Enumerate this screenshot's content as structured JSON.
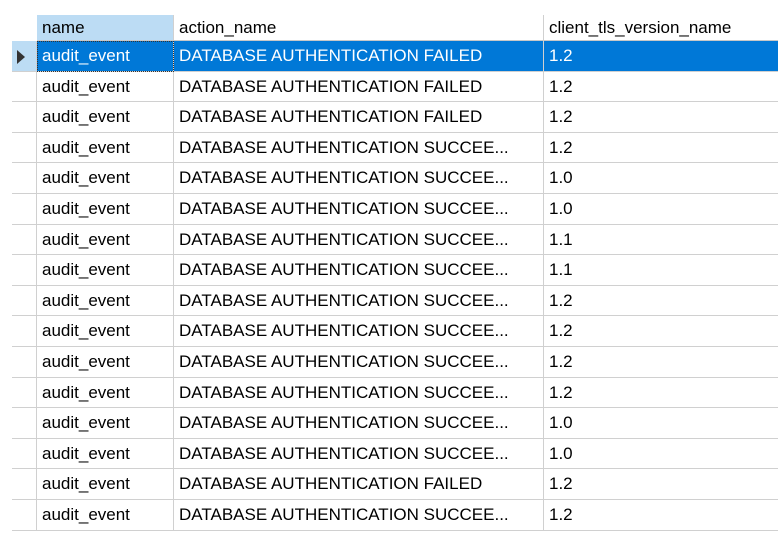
{
  "columns": [
    "name",
    "action_name",
    "client_tls_version_name"
  ],
  "selected_row": 0,
  "rows": [
    [
      "audit_event",
      "DATABASE AUTHENTICATION FAILED",
      "1.2"
    ],
    [
      "audit_event",
      "DATABASE AUTHENTICATION FAILED",
      "1.2"
    ],
    [
      "audit_event",
      "DATABASE AUTHENTICATION FAILED",
      "1.2"
    ],
    [
      "audit_event",
      "DATABASE AUTHENTICATION SUCCEE...",
      "1.2"
    ],
    [
      "audit_event",
      "DATABASE AUTHENTICATION SUCCEE...",
      "1.0"
    ],
    [
      "audit_event",
      "DATABASE AUTHENTICATION SUCCEE...",
      "1.0"
    ],
    [
      "audit_event",
      "DATABASE AUTHENTICATION SUCCEE...",
      "1.1"
    ],
    [
      "audit_event",
      "DATABASE AUTHENTICATION SUCCEE...",
      "1.1"
    ],
    [
      "audit_event",
      "DATABASE AUTHENTICATION SUCCEE...",
      "1.2"
    ],
    [
      "audit_event",
      "DATABASE AUTHENTICATION SUCCEE...",
      "1.2"
    ],
    [
      "audit_event",
      "DATABASE AUTHENTICATION SUCCEE...",
      "1.2"
    ],
    [
      "audit_event",
      "DATABASE AUTHENTICATION SUCCEE...",
      "1.2"
    ],
    [
      "audit_event",
      "DATABASE AUTHENTICATION SUCCEE...",
      "1.0"
    ],
    [
      "audit_event",
      "DATABASE AUTHENTICATION SUCCEE...",
      "1.0"
    ],
    [
      "audit_event",
      "DATABASE AUTHENTICATION FAILED",
      "1.2"
    ],
    [
      "audit_event",
      "DATABASE AUTHENTICATION SUCCEE...",
      "1.2"
    ]
  ]
}
